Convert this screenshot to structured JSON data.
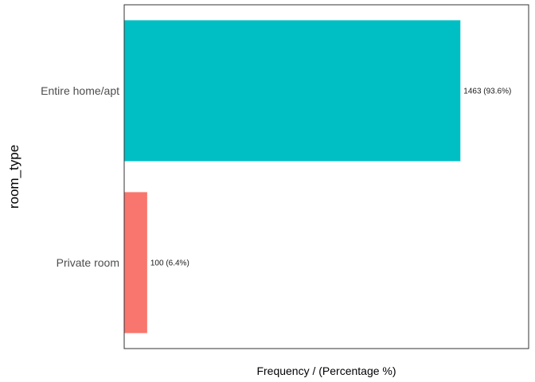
{
  "chart_data": {
    "type": "bar",
    "orientation": "horizontal",
    "categories": [
      "Entire home/apt",
      "Private room"
    ],
    "values": [
      1463,
      100
    ],
    "data_labels": [
      "1463 (93.6%)",
      "100 (6.4%)"
    ],
    "colors": [
      "#00BFC4",
      "#F8766D"
    ],
    "xlabel": "Frequency / (Percentage %)",
    "ylabel": "room_type",
    "xlim": [
      0,
      1760
    ],
    "x_ticks_shown": false,
    "grid": false,
    "legend": "none"
  }
}
